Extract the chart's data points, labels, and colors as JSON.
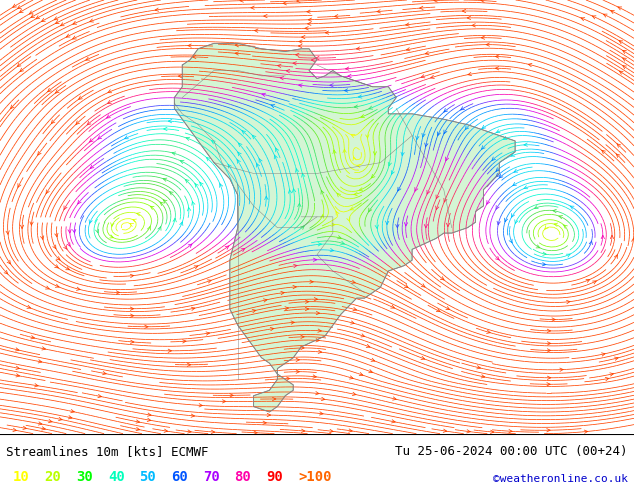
{
  "title_left": "Streamlines 10m [kts] ECMWF",
  "title_right": "Tu 25-06-2024 00:00 UTC (00+24)",
  "credit": "©weatheronline.co.uk",
  "legend_values": [
    "10",
    "20",
    "30",
    "40",
    "50",
    "60",
    "70",
    "80",
    "90",
    ">100"
  ],
  "legend_colors": [
    "#ffff00",
    "#bbff00",
    "#00ff00",
    "#00ffbb",
    "#00bbff",
    "#0055ff",
    "#aa00ff",
    "#ff00aa",
    "#ff0000",
    "#ff6600"
  ],
  "background_color": "#ffffff",
  "ocean_color": "#f0f0f0",
  "land_color": "#e8ffe8",
  "border_color": "#888888",
  "coast_color": "#888888",
  "fig_width": 6.34,
  "fig_height": 4.9,
  "dpi": 100,
  "text_color": "#000000",
  "font_size_title": 9,
  "font_size_legend": 10,
  "font_size_credit": 8,
  "map_extent": [
    -100,
    -20,
    -60,
    20
  ],
  "colormap_stops": [
    [
      0.0,
      "#ffff00"
    ],
    [
      0.15,
      "#ccff00"
    ],
    [
      0.25,
      "#88ff00"
    ],
    [
      0.35,
      "#44dd44"
    ],
    [
      0.45,
      "#00ffcc"
    ],
    [
      0.55,
      "#00ccff"
    ],
    [
      0.65,
      "#0066ff"
    ],
    [
      0.75,
      "#cc00ff"
    ],
    [
      0.85,
      "#ff00aa"
    ],
    [
      1.0,
      "#ff4400"
    ]
  ],
  "speed_min": 0,
  "speed_max": 80
}
